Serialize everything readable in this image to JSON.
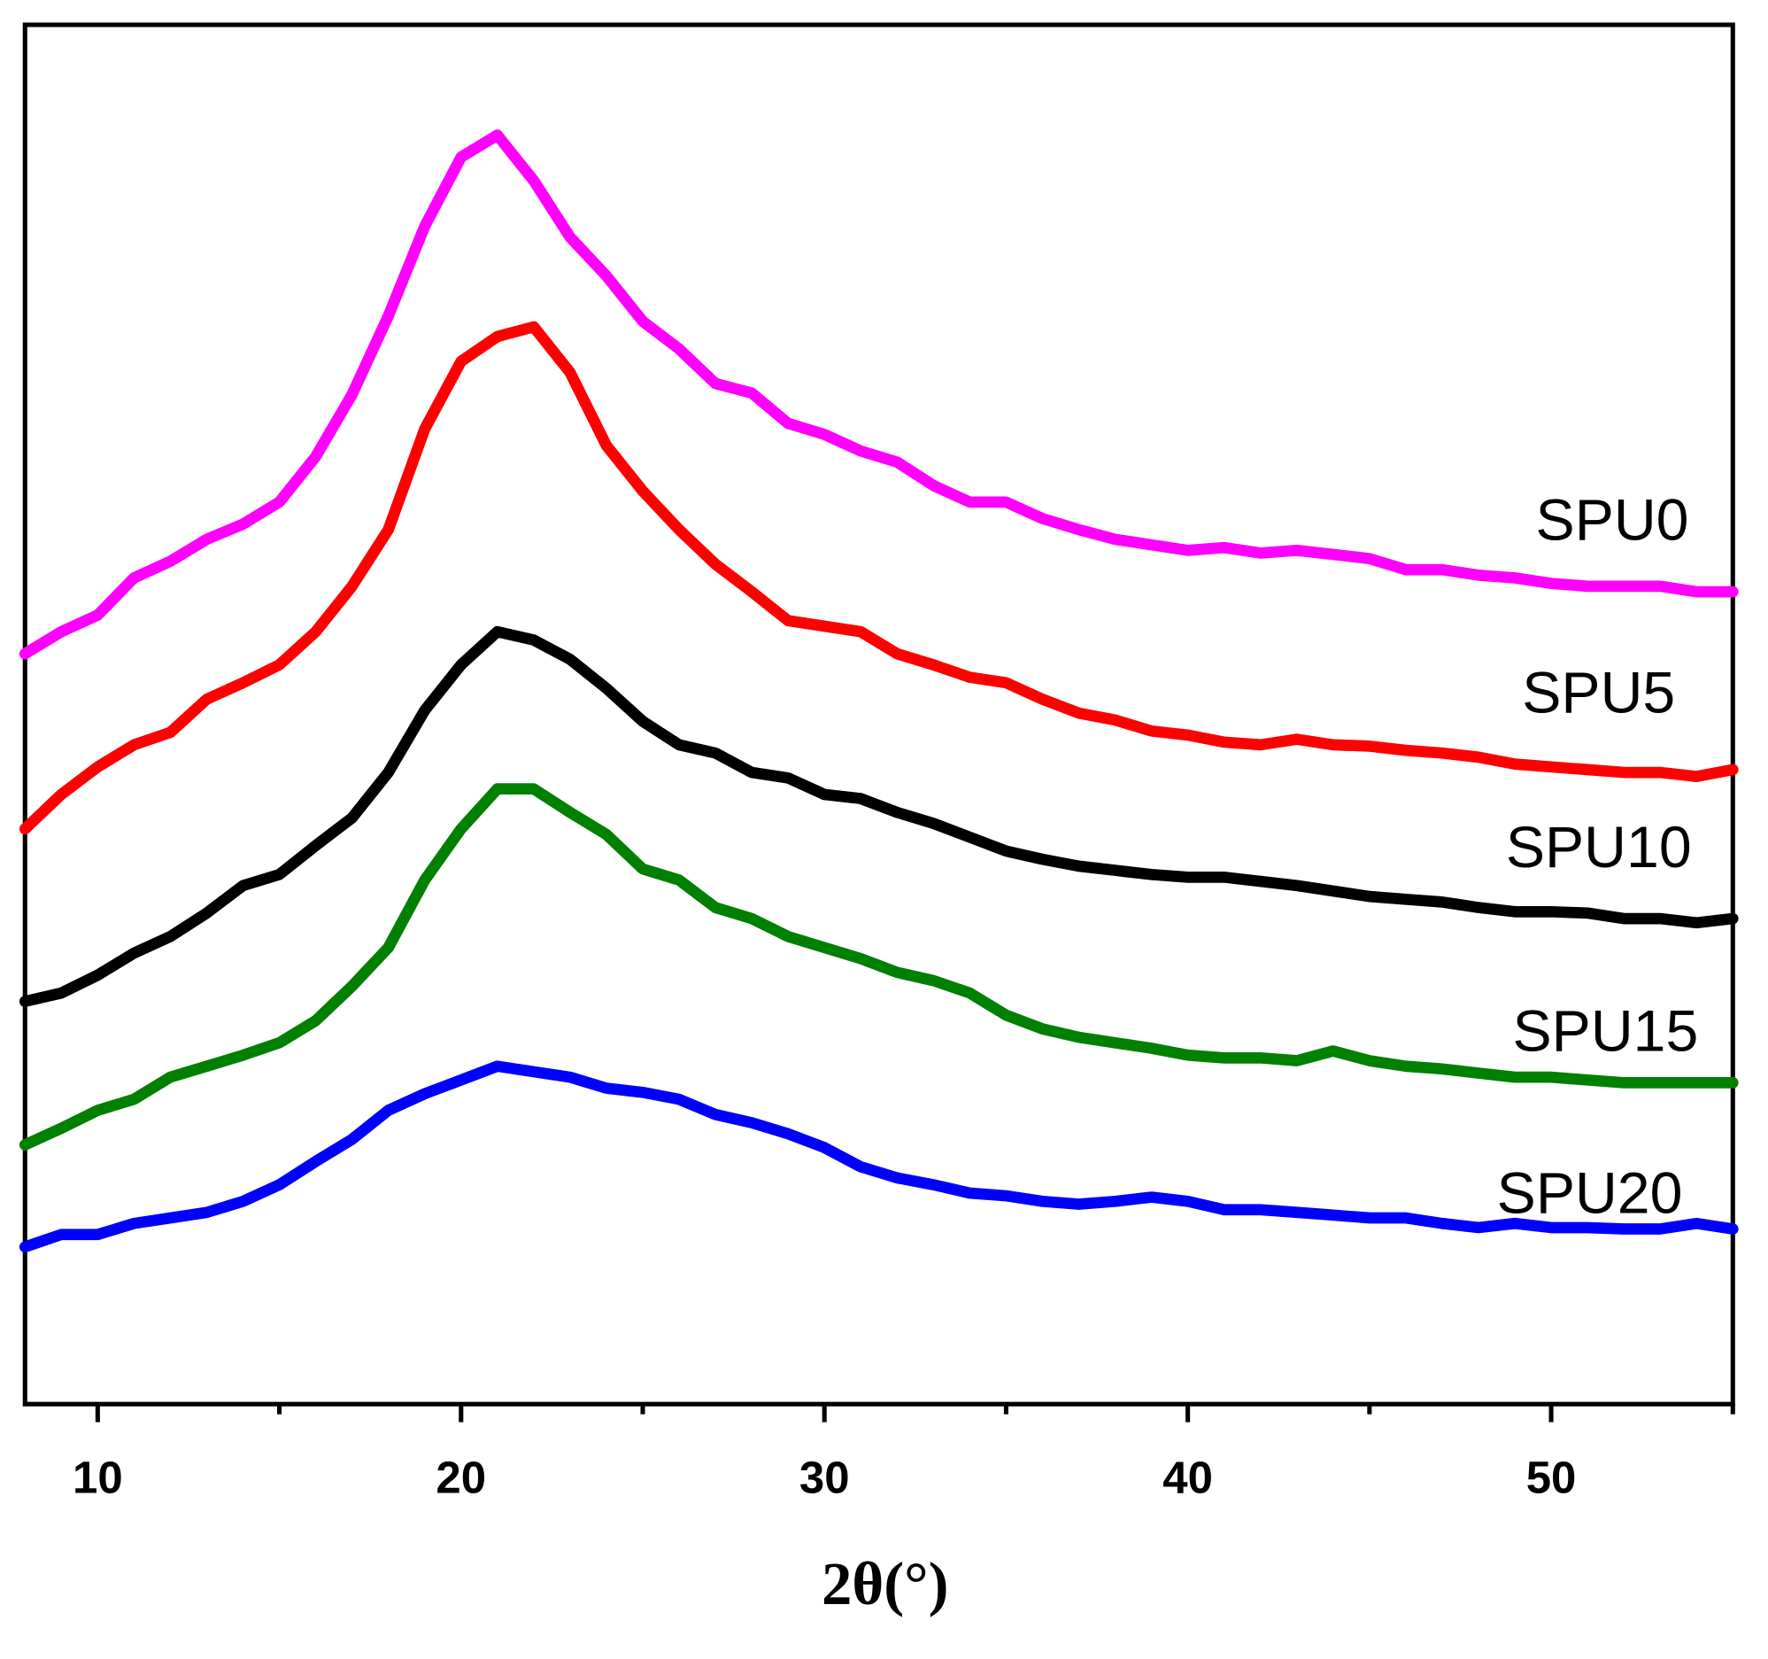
{
  "chart_data": {
    "type": "line",
    "x_label": "2θ(°)",
    "x": [
      8,
      9,
      10,
      11,
      12,
      13,
      14,
      15,
      16,
      17,
      18,
      19,
      20,
      21,
      22,
      23,
      24,
      25,
      26,
      27,
      28,
      29,
      30,
      31,
      32,
      33,
      34,
      35,
      36,
      37,
      38,
      39,
      40,
      41,
      42,
      43,
      44,
      45,
      46,
      47,
      48,
      49,
      50,
      51,
      52,
      53,
      54,
      55
    ],
    "series": [
      {
        "name": "SPU0",
        "color": "#ff00ff",
        "values": [
          54.4,
          56.0,
          57.2,
          59.9,
          61.1,
          62.7,
          63.8,
          65.4,
          68.7,
          73.2,
          78.9,
          85.4,
          90.4,
          92.0,
          88.7,
          84.6,
          81.8,
          78.5,
          76.5,
          74.0,
          73.3,
          71.1,
          70.3,
          69.1,
          68.3,
          66.6,
          65.4,
          65.4,
          64.2,
          63.4,
          62.7,
          62.3,
          61.9,
          62.1,
          61.7,
          61.9,
          61.6,
          61.3,
          60.5,
          60.5,
          60.1,
          59.9,
          59.5,
          59.3,
          59.3,
          59.3,
          58.9,
          58.9
        ]
      },
      {
        "name": "SPU5",
        "color": "#ff0000",
        "values": [
          41.7,
          44.2,
          46.2,
          47.8,
          48.7,
          51.1,
          52.3,
          53.6,
          56.0,
          59.3,
          63.4,
          70.7,
          75.6,
          77.4,
          78.1,
          74.8,
          69.5,
          66.2,
          63.4,
          60.9,
          58.9,
          56.8,
          56.4,
          56.0,
          54.4,
          53.6,
          52.7,
          52.3,
          51.1,
          50.1,
          49.6,
          48.8,
          48.5,
          48.0,
          47.8,
          48.2,
          47.8,
          47.7,
          47.4,
          47.2,
          46.9,
          46.4,
          46.2,
          46.0,
          45.8,
          45.8,
          45.5,
          46.0
        ]
      },
      {
        "name": "SPU10",
        "color": "#000000",
        "values": [
          29.2,
          29.8,
          31.1,
          32.7,
          33.9,
          35.6,
          37.6,
          38.4,
          40.5,
          42.5,
          45.8,
          50.3,
          53.6,
          56.0,
          55.4,
          54.0,
          51.9,
          49.5,
          47.8,
          47.2,
          45.8,
          45.4,
          44.2,
          43.9,
          42.9,
          42.1,
          41.1,
          40.1,
          39.5,
          39.0,
          38.7,
          38.4,
          38.2,
          38.2,
          37.9,
          37.6,
          37.2,
          36.8,
          36.6,
          36.4,
          36.0,
          35.7,
          35.7,
          35.6,
          35.2,
          35.2,
          34.9,
          35.2
        ]
      },
      {
        "name": "SPU15",
        "color": "#008000",
        "values": [
          18.8,
          20.0,
          21.3,
          22.1,
          23.7,
          24.5,
          25.3,
          26.2,
          27.8,
          30.3,
          33.1,
          38.0,
          41.7,
          44.6,
          44.6,
          42.9,
          41.3,
          38.8,
          38.0,
          36.0,
          35.2,
          33.9,
          33.1,
          32.3,
          31.3,
          30.7,
          29.8,
          28.2,
          27.2,
          26.6,
          26.2,
          25.8,
          25.3,
          25.1,
          25.1,
          24.9,
          25.6,
          24.9,
          24.5,
          24.3,
          24.0,
          23.7,
          23.7,
          23.5,
          23.3,
          23.3,
          23.3,
          23.3
        ]
      },
      {
        "name": "SPU20",
        "color": "#0000ff",
        "values": [
          11.4,
          12.3,
          12.3,
          13.1,
          13.5,
          13.9,
          14.7,
          15.9,
          17.6,
          19.2,
          21.3,
          22.5,
          23.5,
          24.5,
          24.1,
          23.7,
          22.9,
          22.6,
          22.1,
          21.0,
          20.4,
          19.6,
          18.6,
          17.2,
          16.4,
          15.9,
          15.3,
          15.1,
          14.7,
          14.5,
          14.7,
          15.0,
          14.7,
          14.1,
          14.1,
          13.9,
          13.7,
          13.5,
          13.5,
          13.1,
          12.8,
          13.1,
          12.8,
          12.8,
          12.7,
          12.7,
          13.1,
          12.7
        ]
      }
    ],
    "xlim": [
      8,
      55
    ],
    "ylim": [
      0,
      100
    ],
    "xticks": [
      10,
      20,
      30,
      40,
      50
    ],
    "xminorticks": [
      15,
      25,
      35,
      45,
      55
    ]
  }
}
